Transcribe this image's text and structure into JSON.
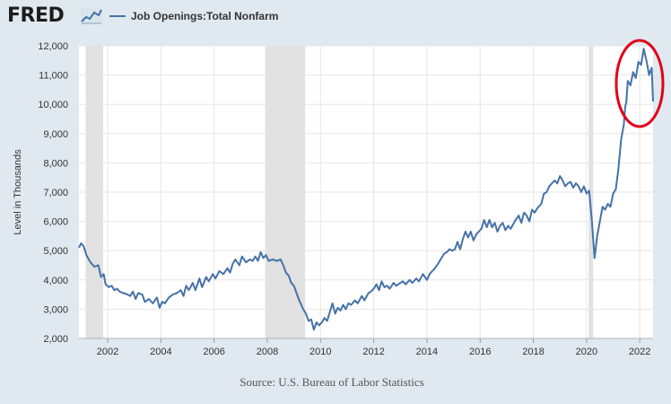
{
  "header": {
    "logo_text": "FRED",
    "logo_icon": "trend-graph-icon",
    "legend_label": "Job Openings:Total Nonfarm"
  },
  "source": "Source: U.S. Bureau of Labor Statistics",
  "colors": {
    "page_bg": "#e1e9f0",
    "plot_bg": "#ffffff",
    "line": "#4572a7",
    "recession": "#e1e1e1",
    "annotation": "#e3001b"
  },
  "chart_data": {
    "type": "line",
    "ylabel": "Level in Thousands",
    "xlabel": "",
    "ylim": [
      2000,
      12000
    ],
    "xlim": [
      2000.92,
      2022.5
    ],
    "grid": true,
    "y_ticks": [
      {
        "value": 2000,
        "label": "2,000"
      },
      {
        "value": 3000,
        "label": "3,000"
      },
      {
        "value": 4000,
        "label": "4,000"
      },
      {
        "value": 5000,
        "label": "5,000"
      },
      {
        "value": 6000,
        "label": "6,000"
      },
      {
        "value": 7000,
        "label": "7,000"
      },
      {
        "value": 8000,
        "label": "8,000"
      },
      {
        "value": 9000,
        "label": "9,000"
      },
      {
        "value": 10000,
        "label": "10,000"
      },
      {
        "value": 11000,
        "label": "11,000"
      },
      {
        "value": 12000,
        "label": "12,000"
      }
    ],
    "x_ticks": [
      {
        "value": 2002,
        "label": "2002"
      },
      {
        "value": 2004,
        "label": "2004"
      },
      {
        "value": 2006,
        "label": "2006"
      },
      {
        "value": 2008,
        "label": "2008"
      },
      {
        "value": 2010,
        "label": "2010"
      },
      {
        "value": 2012,
        "label": "2012"
      },
      {
        "value": 2014,
        "label": "2014"
      },
      {
        "value": 2016,
        "label": "2016"
      },
      {
        "value": 2018,
        "label": "2018"
      },
      {
        "value": 2020,
        "label": "2020"
      },
      {
        "value": 2022,
        "label": "2022"
      }
    ],
    "recessions": [
      {
        "start": 2001.17,
        "end": 2001.83
      },
      {
        "start": 2007.92,
        "end": 2009.42
      },
      {
        "start": 2020.08,
        "end": 2020.25
      }
    ],
    "series": [
      {
        "values": [
          [
            2000.92,
            5100
          ],
          [
            2001.0,
            5250
          ],
          [
            2001.1,
            5150
          ],
          [
            2001.2,
            4850
          ],
          [
            2001.35,
            4600
          ],
          [
            2001.5,
            4450
          ],
          [
            2001.65,
            4500
          ],
          [
            2001.75,
            4100
          ],
          [
            2001.85,
            4200
          ],
          [
            2001.92,
            3850
          ],
          [
            2002.05,
            3750
          ],
          [
            2002.15,
            3800
          ],
          [
            2002.25,
            3650
          ],
          [
            2002.35,
            3700
          ],
          [
            2002.45,
            3600
          ],
          [
            2002.6,
            3550
          ],
          [
            2002.75,
            3500
          ],
          [
            2002.85,
            3450
          ],
          [
            2002.95,
            3600
          ],
          [
            2003.05,
            3350
          ],
          [
            2003.15,
            3550
          ],
          [
            2003.3,
            3500
          ],
          [
            2003.4,
            3250
          ],
          [
            2003.55,
            3350
          ],
          [
            2003.7,
            3200
          ],
          [
            2003.85,
            3400
          ],
          [
            2003.95,
            3050
          ],
          [
            2004.05,
            3250
          ],
          [
            2004.15,
            3200
          ],
          [
            2004.3,
            3400
          ],
          [
            2004.45,
            3500
          ],
          [
            2004.6,
            3550
          ],
          [
            2004.75,
            3650
          ],
          [
            2004.85,
            3450
          ],
          [
            2004.95,
            3800
          ],
          [
            2005.05,
            3650
          ],
          [
            2005.2,
            3900
          ],
          [
            2005.3,
            3650
          ],
          [
            2005.45,
            4050
          ],
          [
            2005.55,
            3750
          ],
          [
            2005.7,
            4100
          ],
          [
            2005.8,
            3950
          ],
          [
            2005.95,
            4200
          ],
          [
            2006.05,
            4050
          ],
          [
            2006.2,
            4300
          ],
          [
            2006.35,
            4200
          ],
          [
            2006.5,
            4400
          ],
          [
            2006.6,
            4250
          ],
          [
            2006.7,
            4550
          ],
          [
            2006.8,
            4700
          ],
          [
            2006.95,
            4500
          ],
          [
            2007.05,
            4800
          ],
          [
            2007.2,
            4600
          ],
          [
            2007.35,
            4700
          ],
          [
            2007.45,
            4650
          ],
          [
            2007.55,
            4800
          ],
          [
            2007.65,
            4650
          ],
          [
            2007.75,
            4950
          ],
          [
            2007.85,
            4750
          ],
          [
            2007.95,
            4850
          ],
          [
            2008.05,
            4650
          ],
          [
            2008.2,
            4700
          ],
          [
            2008.35,
            4650
          ],
          [
            2008.5,
            4700
          ],
          [
            2008.6,
            4500
          ],
          [
            2008.7,
            4250
          ],
          [
            2008.8,
            4150
          ],
          [
            2008.9,
            3900
          ],
          [
            2009.0,
            3800
          ],
          [
            2009.1,
            3550
          ],
          [
            2009.2,
            3300
          ],
          [
            2009.35,
            3000
          ],
          [
            2009.45,
            2850
          ],
          [
            2009.55,
            2600
          ],
          [
            2009.65,
            2650
          ],
          [
            2009.75,
            2300
          ],
          [
            2009.85,
            2550
          ],
          [
            2009.95,
            2450
          ],
          [
            2010.05,
            2550
          ],
          [
            2010.15,
            2700
          ],
          [
            2010.25,
            2600
          ],
          [
            2010.35,
            2900
          ],
          [
            2010.45,
            3200
          ],
          [
            2010.55,
            2850
          ],
          [
            2010.65,
            3050
          ],
          [
            2010.75,
            2950
          ],
          [
            2010.85,
            3150
          ],
          [
            2010.95,
            3000
          ],
          [
            2011.05,
            3200
          ],
          [
            2011.15,
            3150
          ],
          [
            2011.3,
            3300
          ],
          [
            2011.4,
            3200
          ],
          [
            2011.55,
            3450
          ],
          [
            2011.65,
            3300
          ],
          [
            2011.8,
            3550
          ],
          [
            2011.9,
            3600
          ],
          [
            2012.0,
            3700
          ],
          [
            2012.1,
            3850
          ],
          [
            2012.2,
            3650
          ],
          [
            2012.3,
            3950
          ],
          [
            2012.4,
            3750
          ],
          [
            2012.5,
            3800
          ],
          [
            2012.6,
            3700
          ],
          [
            2012.75,
            3900
          ],
          [
            2012.85,
            3800
          ],
          [
            2013.0,
            3900
          ],
          [
            2013.1,
            3950
          ],
          [
            2013.2,
            3850
          ],
          [
            2013.35,
            4000
          ],
          [
            2013.45,
            3900
          ],
          [
            2013.6,
            4050
          ],
          [
            2013.7,
            3950
          ],
          [
            2013.85,
            4200
          ],
          [
            2014.0,
            4000
          ],
          [
            2014.1,
            4200
          ],
          [
            2014.2,
            4300
          ],
          [
            2014.3,
            4400
          ],
          [
            2014.45,
            4600
          ],
          [
            2014.55,
            4750
          ],
          [
            2014.65,
            4900
          ],
          [
            2014.75,
            4950
          ],
          [
            2014.85,
            5050
          ],
          [
            2014.95,
            5000
          ],
          [
            2015.05,
            5050
          ],
          [
            2015.15,
            5300
          ],
          [
            2015.25,
            5050
          ],
          [
            2015.35,
            5400
          ],
          [
            2015.45,
            5650
          ],
          [
            2015.55,
            5450
          ],
          [
            2015.65,
            5650
          ],
          [
            2015.75,
            5350
          ],
          [
            2015.85,
            5550
          ],
          [
            2015.95,
            5650
          ],
          [
            2016.05,
            5750
          ],
          [
            2016.15,
            6050
          ],
          [
            2016.25,
            5800
          ],
          [
            2016.35,
            6050
          ],
          [
            2016.45,
            5800
          ],
          [
            2016.55,
            5950
          ],
          [
            2016.65,
            5650
          ],
          [
            2016.75,
            5850
          ],
          [
            2016.85,
            5950
          ],
          [
            2016.95,
            5700
          ],
          [
            2017.05,
            5850
          ],
          [
            2017.15,
            5750
          ],
          [
            2017.3,
            6000
          ],
          [
            2017.45,
            6200
          ],
          [
            2017.55,
            5950
          ],
          [
            2017.65,
            6300
          ],
          [
            2017.75,
            6200
          ],
          [
            2017.85,
            6000
          ],
          [
            2017.95,
            6400
          ],
          [
            2018.05,
            6300
          ],
          [
            2018.15,
            6450
          ],
          [
            2018.3,
            6600
          ],
          [
            2018.4,
            6950
          ],
          [
            2018.5,
            7000
          ],
          [
            2018.6,
            7200
          ],
          [
            2018.7,
            7300
          ],
          [
            2018.8,
            7400
          ],
          [
            2018.9,
            7300
          ],
          [
            2019.0,
            7550
          ],
          [
            2019.1,
            7400
          ],
          [
            2019.2,
            7200
          ],
          [
            2019.3,
            7300
          ],
          [
            2019.4,
            7350
          ],
          [
            2019.5,
            7150
          ],
          [
            2019.6,
            7300
          ],
          [
            2019.7,
            7200
          ],
          [
            2019.8,
            7000
          ],
          [
            2019.9,
            7200
          ],
          [
            2020.0,
            6950
          ],
          [
            2020.1,
            7050
          ],
          [
            2020.2,
            6000
          ],
          [
            2020.3,
            4750
          ],
          [
            2020.4,
            5500
          ],
          [
            2020.5,
            6000
          ],
          [
            2020.6,
            6500
          ],
          [
            2020.7,
            6400
          ],
          [
            2020.8,
            6600
          ],
          [
            2020.9,
            6500
          ],
          [
            2021.0,
            6950
          ],
          [
            2021.1,
            7100
          ],
          [
            2021.2,
            7800
          ],
          [
            2021.3,
            8800
          ],
          [
            2021.4,
            9300
          ],
          [
            2021.45,
            9900
          ],
          [
            2021.5,
            10100
          ],
          [
            2021.55,
            10800
          ],
          [
            2021.65,
            10650
          ],
          [
            2021.75,
            11100
          ],
          [
            2021.85,
            10900
          ],
          [
            2021.95,
            11450
          ],
          [
            2022.05,
            11350
          ],
          [
            2022.15,
            11900
          ],
          [
            2022.25,
            11500
          ],
          [
            2022.35,
            11000
          ],
          [
            2022.45,
            11250
          ],
          [
            2022.5,
            10100
          ]
        ]
      }
    ]
  }
}
